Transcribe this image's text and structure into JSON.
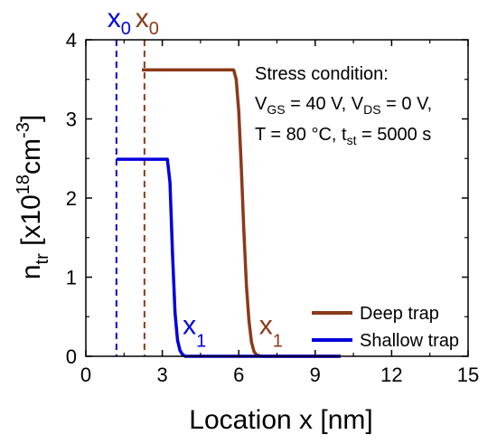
{
  "chart_data": {
    "type": "line",
    "xlabel": "Location x [nm]",
    "ylabel": {
      "base": "n",
      "sub": "tr",
      "rest": " [x10",
      "sup": "18",
      "unit": "cm",
      "unit_sup": "-3",
      "close": "]"
    },
    "xlim": [
      0,
      15
    ],
    "ylim": [
      0,
      4
    ],
    "xticks": [
      0,
      3,
      6,
      9,
      12,
      15
    ],
    "yticks": [
      0,
      1,
      2,
      3,
      4
    ],
    "grid": false,
    "legend_position": "bottom-right",
    "series": [
      {
        "name": "Deep trap",
        "color": "#8b3a1a",
        "x": [
          2.2,
          5.8,
          5.9,
          6.0,
          6.1,
          6.2,
          6.3,
          6.4,
          6.5,
          6.6,
          6.7,
          6.9,
          10
        ],
        "y": [
          3.62,
          3.62,
          3.5,
          3.1,
          2.4,
          1.6,
          0.9,
          0.45,
          0.18,
          0.06,
          0.02,
          0.0,
          0.0
        ]
      },
      {
        "name": "Shallow trap",
        "color": "#0000dd",
        "x": [
          1.2,
          3.2,
          3.3,
          3.4,
          3.5,
          3.6,
          3.7,
          3.8,
          3.9,
          4.1,
          10
        ],
        "y": [
          2.49,
          2.49,
          2.2,
          1.3,
          0.55,
          0.2,
          0.07,
          0.02,
          0.0,
          0.0,
          0.0
        ]
      }
    ],
    "vlines": [
      {
        "x": 1.2,
        "color": "#0000dd",
        "label": "x",
        "sub": "0"
      },
      {
        "x": 2.3,
        "color": "#8b3a1a",
        "label": "x",
        "sub": "0"
      }
    ],
    "curve_labels": [
      {
        "x": 3.8,
        "y": 0.28,
        "color": "#0000dd",
        "label": "x",
        "sub": "1"
      },
      {
        "x": 6.8,
        "y": 0.28,
        "color": "#8b3a1a",
        "label": "x",
        "sub": "1"
      }
    ],
    "annotation": {
      "line1": "Stress condition:",
      "line2": {
        "a": "V",
        "a_sub": "GS",
        "b": " = 40 V, V",
        "b_sub": "DS",
        "c": " = 0 V,"
      },
      "line3": {
        "a": "T = 80 °C, t",
        "a_sub": "st",
        "b": " = 5000 s"
      }
    }
  }
}
